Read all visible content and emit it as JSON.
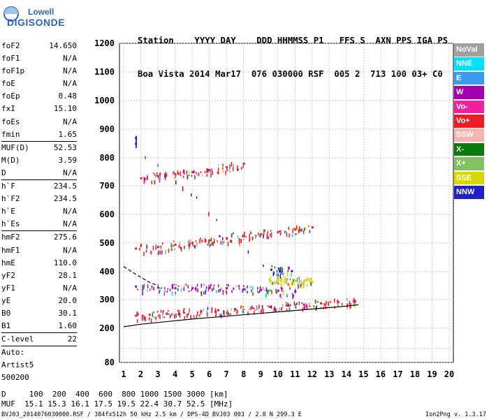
{
  "logo": {
    "line1": "Lowell",
    "line2": "DIGISONDE"
  },
  "header": {
    "line1": "Station    YYYY DAY    DDD HHMMSS P1   FFS S  AXN PPS IGA PS",
    "line2": "Boa Vista 2014 Mar17  076 030000 RSF  005 2  713 100 03+ C0"
  },
  "params": [
    {
      "name": "foF2",
      "value": "14.650"
    },
    {
      "name": "foF1",
      "value": "N/A"
    },
    {
      "name": "foF1p",
      "value": "N/A"
    },
    {
      "name": "foE",
      "value": "N/A"
    },
    {
      "name": "foEp",
      "value": "0.48"
    },
    {
      "name": "fxI",
      "value": "15.10"
    },
    {
      "name": "foEs",
      "value": "N/A"
    },
    {
      "name": "fmin",
      "value": "1.65"
    },
    {
      "sep": true
    },
    {
      "name": "MUF(D)",
      "value": "52.53"
    },
    {
      "name": "M(D)",
      "value": "3.59"
    },
    {
      "name": "D",
      "value": "N/A"
    },
    {
      "sep": true
    },
    {
      "name": "h`F",
      "value": "234.5"
    },
    {
      "name": "h`F2",
      "value": "234.5"
    },
    {
      "name": "h`E",
      "value": "N/A"
    },
    {
      "name": "h`Es",
      "value": "N/A"
    },
    {
      "sep": true
    },
    {
      "name": "hmF2",
      "value": "275.6"
    },
    {
      "name": "hmF1",
      "value": "N/A"
    },
    {
      "name": "hmE",
      "value": "110.0"
    },
    {
      "name": "yF2",
      "value": "28.1"
    },
    {
      "name": "yF1",
      "value": "N/A"
    },
    {
      "name": "yE",
      "value": "20.0"
    },
    {
      "name": "B0",
      "value": "30.1"
    },
    {
      "name": "B1",
      "value": "1.60"
    },
    {
      "sep": true
    },
    {
      "name": "C-level",
      "value": "22"
    },
    {
      "sep": true
    },
    {
      "name": "Auto:",
      "value": ""
    },
    {
      "name": "Artist5",
      "value": ""
    },
    {
      "name": "500200",
      "value": ""
    }
  ],
  "legend": [
    {
      "label": "NoVal",
      "color": "#a0a0a0"
    },
    {
      "label": "NNE",
      "color": "#00e0ff"
    },
    {
      "label": "E",
      "color": "#3a9cf0"
    },
    {
      "label": "W",
      "color": "#a000b0"
    },
    {
      "label": "Vo-",
      "color": "#f020a0"
    },
    {
      "label": "Vo+",
      "color": "#ee1c24"
    },
    {
      "label": "SSW",
      "color": "#f4b4b0"
    },
    {
      "label": "X-",
      "color": "#0a7a0a"
    },
    {
      "label": "X+",
      "color": "#84c060"
    },
    {
      "label": "SSE",
      "color": "#d8d800"
    },
    {
      "label": "NNW",
      "color": "#2020c8"
    }
  ],
  "footer": {
    "dline": "D     100  200  400  600  800 1000 1500 3000 [km]",
    "mufline": "MUF  15.1 15.3 16.1 17.5 19.5 22.4 30.7 52.5 [MHz]",
    "fileline": "BVJ03_2014076030000.RSF / 384fx512h 50 kHz 2.5 km / DPS-4D BVJ03 003 / 2.8 N 299.3 E",
    "version": "Ion2Png v. 1.3.17"
  },
  "chart_data": {
    "type": "scatter",
    "title": "",
    "xlabel": "",
    "ylabel": "",
    "xlim": [
      1,
      20
    ],
    "ylim": [
      80,
      1200
    ],
    "x_ticks": [
      1,
      2,
      3,
      4,
      5,
      6,
      7,
      8,
      9,
      10,
      11,
      12,
      13,
      14,
      15,
      16,
      17,
      18,
      19,
      20
    ],
    "y_ticks": [
      80,
      100,
      200,
      300,
      400,
      500,
      600,
      700,
      800,
      900,
      1000,
      1100,
      1200
    ],
    "y_tick_labels": [
      "80",
      "",
      "200",
      "300",
      "400",
      "500",
      "600",
      "700",
      "800",
      "900",
      "1000",
      "1100",
      "1200"
    ],
    "grid": true,
    "traces": [
      {
        "name": "F2 O-trace",
        "color": "#ee1c24",
        "points": [
          [
            1.7,
            245
          ],
          [
            2.5,
            248
          ],
          [
            3.5,
            252
          ],
          [
            4.5,
            256
          ],
          [
            5.5,
            260
          ],
          [
            6.5,
            264
          ],
          [
            7.5,
            268
          ],
          [
            8.5,
            272
          ],
          [
            9.5,
            276
          ],
          [
            10.5,
            280
          ],
          [
            11.5,
            284
          ],
          [
            12.5,
            288
          ],
          [
            13.5,
            292
          ],
          [
            14.5,
            296
          ]
        ]
      },
      {
        "name": "F2 2nd hop",
        "color": "#ee1c24",
        "points": [
          [
            1.7,
            482
          ],
          [
            3,
            488
          ],
          [
            4,
            495
          ],
          [
            5,
            502
          ],
          [
            6,
            510
          ],
          [
            7,
            518
          ],
          [
            8,
            525
          ],
          [
            9,
            532
          ],
          [
            10,
            540
          ],
          [
            11,
            548
          ],
          [
            12,
            556
          ]
        ]
      },
      {
        "name": "F2 3rd hop",
        "color": "#ee1c24",
        "points": [
          [
            2,
            728
          ],
          [
            3,
            735
          ],
          [
            4,
            742
          ],
          [
            5,
            750
          ],
          [
            6,
            758
          ],
          [
            7,
            768
          ],
          [
            8,
            780
          ]
        ]
      },
      {
        "name": "X trace",
        "color": "#a000b0",
        "points": [
          [
            1.7,
            348
          ],
          [
            3,
            344
          ],
          [
            4,
            342
          ],
          [
            5,
            342
          ],
          [
            6,
            343
          ],
          [
            7,
            342
          ],
          [
            8,
            338
          ],
          [
            9,
            336
          ],
          [
            10,
            333
          ],
          [
            11,
            330
          ]
        ]
      },
      {
        "name": "SSE echoes",
        "color": "#d8d800",
        "points": [
          [
            9.5,
            374
          ],
          [
            10,
            372
          ],
          [
            10.5,
            370
          ],
          [
            11,
            368
          ],
          [
            11.5,
            366
          ],
          [
            12,
            364
          ]
        ]
      },
      {
        "name": "NNW echoes",
        "color": "#2020c8",
        "points": [
          [
            1.7,
            870
          ],
          [
            1.7,
            850
          ],
          [
            9.6,
            408
          ],
          [
            10.1,
            405
          ],
          [
            10.8,
            403
          ]
        ]
      }
    ],
    "fit_lines": [
      {
        "name": "profile",
        "color": "#000000",
        "points": [
          [
            1,
            205
          ],
          [
            2,
            214
          ],
          [
            3,
            220
          ],
          [
            4,
            226
          ],
          [
            5,
            232
          ],
          [
            6,
            237
          ],
          [
            7,
            242
          ],
          [
            8,
            247
          ],
          [
            9,
            252
          ],
          [
            10,
            257
          ],
          [
            11,
            262
          ],
          [
            12,
            267
          ],
          [
            13,
            272
          ],
          [
            14,
            277
          ],
          [
            14.7,
            282
          ]
        ]
      },
      {
        "name": "dashed",
        "color": "#000000",
        "dashed": true,
        "points": [
          [
            1,
            418
          ],
          [
            1.5,
            398
          ],
          [
            2,
            380
          ],
          [
            2.5,
            362
          ],
          [
            3,
            350
          ]
        ]
      }
    ]
  }
}
